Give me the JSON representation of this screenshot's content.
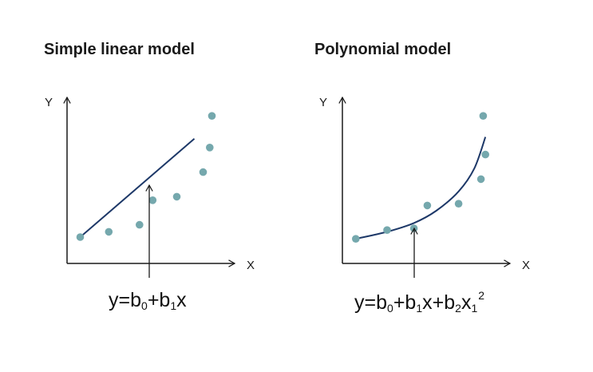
{
  "panels": [
    {
      "title": "Simple linear model",
      "y_axis": "Y",
      "x_axis": "X",
      "formula": {
        "y": "y",
        "eq": "=",
        "b0": "b",
        "b0_sub": "0",
        "plus1": "+",
        "b1": "b",
        "b1_sub": "1",
        "x": "x"
      },
      "points": [
        {
          "x": 0.6,
          "y": 1.5
        },
        {
          "x": 1.9,
          "y": 1.8
        },
        {
          "x": 3.3,
          "y": 2.2
        },
        {
          "x": 3.9,
          "y": 3.6
        },
        {
          "x": 5.0,
          "y": 3.8
        },
        {
          "x": 6.2,
          "y": 5.2
        },
        {
          "x": 6.5,
          "y": 6.6
        },
        {
          "x": 6.6,
          "y": 8.4
        }
      ],
      "fit_line": {
        "x1": 0.6,
        "x2": 5.8,
        "y1": 1.5,
        "y2": 7.1
      }
    },
    {
      "title": "Polynomial model",
      "y_axis": "Y",
      "x_axis": "X",
      "formula": {
        "y": "y",
        "eq": "=",
        "b0": "b",
        "b0_sub": "0",
        "plus1": "+",
        "b1": "b",
        "b1_sub": "1",
        "x": "x",
        "plus2": "+",
        "b2": "b",
        "b2_sub": "2",
        "x1": "x",
        "x1_sub": "1",
        "x1_sup": "2"
      },
      "points": [
        {
          "x": 0.6,
          "y": 1.4
        },
        {
          "x": 2.0,
          "y": 1.9
        },
        {
          "x": 3.2,
          "y": 2.0
        },
        {
          "x": 3.8,
          "y": 3.3
        },
        {
          "x": 5.2,
          "y": 3.4
        },
        {
          "x": 6.2,
          "y": 4.8
        },
        {
          "x": 6.4,
          "y": 6.2
        },
        {
          "x": 6.3,
          "y": 8.4
        }
      ],
      "fit_curve": [
        {
          "x": 0.6,
          "y": 1.4
        },
        {
          "x": 2.0,
          "y": 1.8
        },
        {
          "x": 3.2,
          "y": 2.3
        },
        {
          "x": 4.2,
          "y": 3.0
        },
        {
          "x": 5.2,
          "y": 4.1
        },
        {
          "x": 5.9,
          "y": 5.4
        },
        {
          "x": 6.4,
          "y": 7.2
        }
      ]
    }
  ],
  "colors": {
    "axis": "#1a1a1a",
    "fit": "#1d3868",
    "point": "#75a8ad"
  }
}
